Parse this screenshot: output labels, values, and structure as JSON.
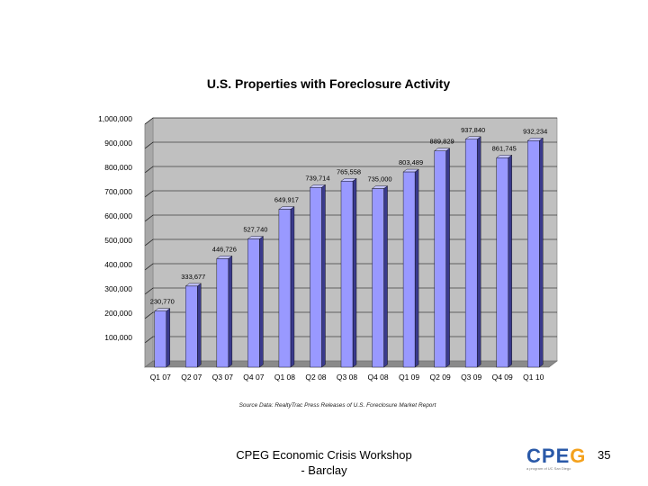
{
  "chart_data": {
    "type": "bar",
    "title": "U.S. Properties with Foreclosure Activity",
    "categories": [
      "Q1 07",
      "Q2 07",
      "Q3 07",
      "Q4 07",
      "Q1 08",
      "Q2 08",
      "Q3 08",
      "Q4 08",
      "Q1 09",
      "Q2 09",
      "Q3 09",
      "Q4 09",
      "Q1 10"
    ],
    "values": [
      230770,
      333677,
      446726,
      527740,
      649917,
      739714,
      765558,
      735000,
      803489,
      889829,
      937840,
      861745,
      932234
    ],
    "data_labels": [
      "230,770",
      "333,677",
      "446,726",
      "527,740",
      "649,917",
      "739,714",
      "765,558",
      "735,000",
      "803,489",
      "889,829",
      "937,840",
      "861,745",
      "932,234"
    ],
    "ylim": [
      0,
      1000000
    ],
    "y_ticks": [
      100000,
      200000,
      300000,
      400000,
      500000,
      600000,
      700000,
      800000,
      900000,
      1000000
    ],
    "y_tick_labels": [
      "100,000",
      "200,000",
      "300,000",
      "400,000",
      "500,000",
      "600,000",
      "700,000",
      "800,000",
      "900,000",
      "1,000,000"
    ],
    "xlabel": "",
    "ylabel": "",
    "source": "Source Data: RealtyTrac Press Releases of U.S. Foreclosure Market Report",
    "grid": true,
    "colors": {
      "bar_front": "#9999ff",
      "bar_side": "#3a3a8c",
      "bar_top": "#c4c4ff",
      "plot_wall": "#c0c0c0",
      "floor": "#8a8a8a"
    }
  },
  "footer": {
    "line1": "CPEG Economic Crisis Workshop",
    "line2": "- Barclay"
  },
  "logo": {
    "text_c": "C",
    "text_p": "P",
    "text_e": "E",
    "text_g": "G",
    "tagline": "a program of UC San Diego"
  },
  "page_number": "35"
}
